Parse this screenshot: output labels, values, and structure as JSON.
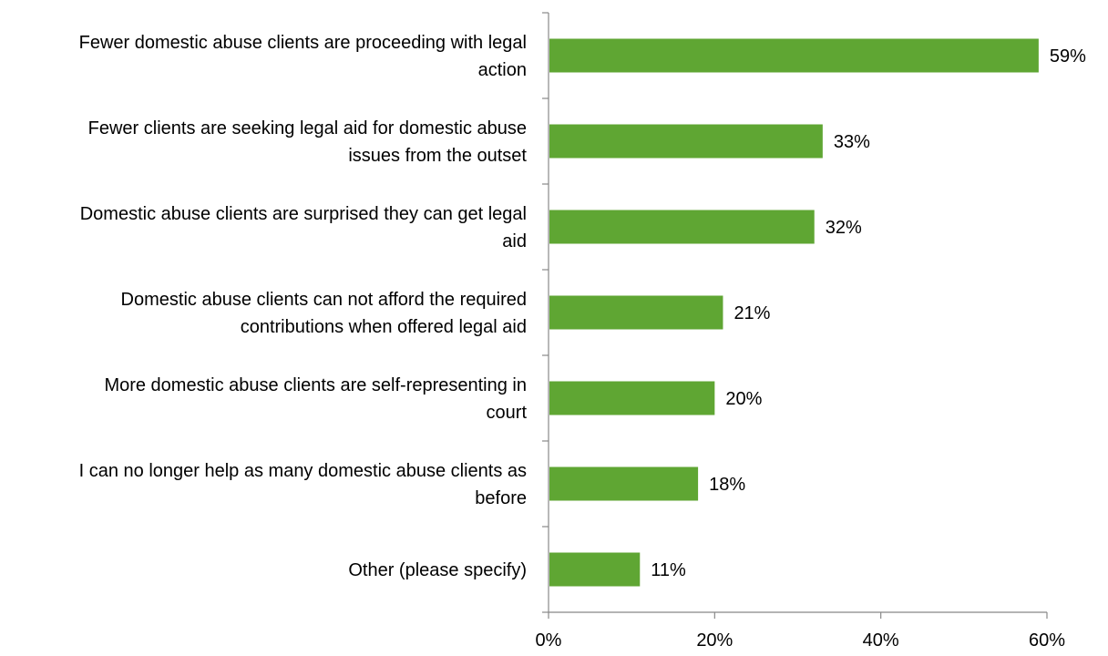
{
  "chart_data": {
    "type": "bar",
    "orientation": "horizontal",
    "categories": [
      [
        "Fewer domestic abuse clients are proceeding with legal",
        "action"
      ],
      [
        "Fewer clients are seeking legal aid for domestic abuse",
        "issues from the outset"
      ],
      [
        "Domestic abuse clients are surprised they can get legal",
        "aid"
      ],
      [
        "Domestic abuse clients can not afford the required",
        "contributions when offered legal aid"
      ],
      [
        "More domestic abuse clients are self-representing in",
        "court"
      ],
      [
        "I can no longer help as many domestic abuse clients as",
        "before"
      ],
      [
        "Other (please specify)"
      ]
    ],
    "values": [
      59,
      33,
      32,
      21,
      20,
      18,
      11
    ],
    "value_labels": [
      "59%",
      "33%",
      "32%",
      "21%",
      "20%",
      "18%",
      "11%"
    ],
    "xlim": [
      0,
      60
    ],
    "xticks": [
      0,
      20,
      40,
      60
    ],
    "xtick_labels": [
      "0%",
      "20%",
      "40%",
      "60%"
    ],
    "bar_color": "#5fa633",
    "axis_color": "#888888",
    "grid": false,
    "legend": "none"
  }
}
